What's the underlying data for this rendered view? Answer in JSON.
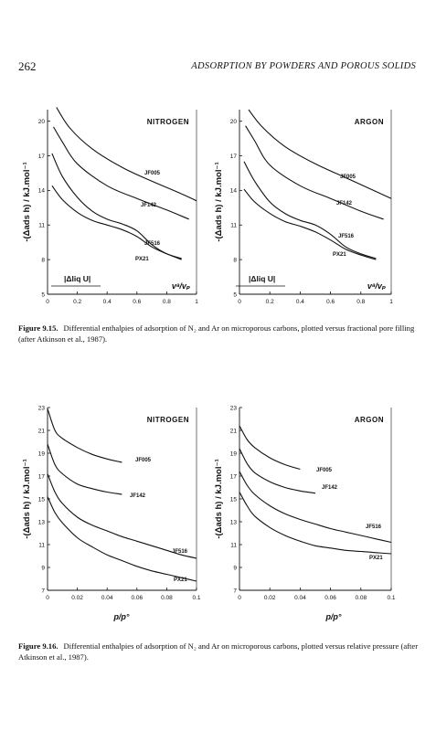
{
  "header": {
    "page_number": "262",
    "running_title": "ADSORPTION BY POWDERS AND POROUS SOLIDS"
  },
  "figure_15": {
    "caption_label": "Figure 9.15.",
    "caption_text": "Differential enthalpies of adsorption of N₂ and Ar on microporous carbons, plotted versus fractional pore filling (after Atkinson et al., 1987)."
  },
  "figure_16": {
    "caption_label": "Figure 9.16.",
    "caption_text": "Differential enthalpies of adsorption of N₂ and Ar on microporous carbons, plotted versus relative pressure (after Atkinson et al., 1987)."
  },
  "chart_data": [
    {
      "type": "line",
      "title": "NITROGEN",
      "ylabel": "-(Δads h) / kJ.mol⁻¹",
      "xlabel": "vᵃ/vₚ",
      "annotation": "|Δliq U|",
      "xlim": [
        0,
        1
      ],
      "ylim": [
        5,
        21
      ],
      "xticks": [
        "0",
        "0.2",
        "0.4",
        "0.6",
        "0.8",
        "1"
      ],
      "yticks": [
        "5",
        "8",
        "11",
        "14",
        "17",
        "20"
      ],
      "series": [
        {
          "name": "JF005",
          "x": [
            0.06,
            0.15,
            0.3,
            0.5,
            0.7,
            0.9,
            1.0
          ],
          "y": [
            21.2,
            19.4,
            17.6,
            16.0,
            14.8,
            13.7,
            13.1
          ]
        },
        {
          "name": "JF142",
          "x": [
            0.04,
            0.1,
            0.2,
            0.4,
            0.6,
            0.8,
            0.95
          ],
          "y": [
            19.5,
            18.2,
            16.3,
            14.4,
            13.3,
            12.3,
            11.5
          ]
        },
        {
          "name": "JF516",
          "x": [
            0.03,
            0.1,
            0.2,
            0.3,
            0.4,
            0.5,
            0.6,
            0.7,
            0.8,
            0.9
          ],
          "y": [
            17.2,
            15.2,
            13.4,
            12.2,
            11.5,
            11.1,
            10.5,
            9.3,
            8.5,
            8.1
          ]
        },
        {
          "name": "PX21",
          "x": [
            0.03,
            0.1,
            0.2,
            0.3,
            0.4,
            0.5,
            0.6,
            0.7,
            0.8,
            0.9
          ],
          "y": [
            14.4,
            13.2,
            12.1,
            11.4,
            11.0,
            10.6,
            10.0,
            9.1,
            8.5,
            8.0
          ]
        }
      ]
    },
    {
      "type": "line",
      "title": "ARGON",
      "ylabel": "-(Δads h) / kJ.mol⁻¹",
      "xlabel": "vᵃ/vₚ",
      "annotation": "|Δliq U|",
      "xlim": [
        0,
        1
      ],
      "ylim": [
        5,
        21
      ],
      "xticks": [
        "0",
        "0.2",
        "0.4",
        "0.6",
        "0.8",
        "1"
      ],
      "yticks": [
        "5",
        "8",
        "11",
        "14",
        "17",
        "20"
      ],
      "series": [
        {
          "name": "JF005",
          "x": [
            0.06,
            0.15,
            0.3,
            0.5,
            0.7,
            0.9,
            1.0
          ],
          "y": [
            21.0,
            19.5,
            17.8,
            16.3,
            15.1,
            13.9,
            13.3
          ]
        },
        {
          "name": "JF142",
          "x": [
            0.04,
            0.1,
            0.2,
            0.4,
            0.6,
            0.8,
            0.95
          ],
          "y": [
            19.6,
            18.3,
            16.2,
            14.4,
            13.3,
            12.2,
            11.5
          ]
        },
        {
          "name": "JF516",
          "x": [
            0.03,
            0.1,
            0.2,
            0.3,
            0.4,
            0.5,
            0.6,
            0.7,
            0.8,
            0.9
          ],
          "y": [
            16.5,
            14.8,
            13.0,
            12.0,
            11.4,
            11.0,
            10.2,
            9.1,
            8.5,
            8.1
          ]
        },
        {
          "name": "PX21",
          "x": [
            0.03,
            0.1,
            0.2,
            0.3,
            0.4,
            0.5,
            0.6,
            0.7,
            0.8,
            0.9
          ],
          "y": [
            14.1,
            13.0,
            12.0,
            11.3,
            10.9,
            10.4,
            9.7,
            8.9,
            8.4,
            8.0
          ]
        }
      ]
    },
    {
      "type": "line",
      "title": "NITROGEN",
      "ylabel": "-(Δads h) / kJ.mol⁻¹",
      "xlabel": "p/p°",
      "xlim": [
        0,
        0.1
      ],
      "ylim": [
        7,
        23
      ],
      "xticks": [
        "0",
        "0.02",
        "0.04",
        "0.06",
        "0.08",
        "0.1"
      ],
      "yticks": [
        "7",
        "9",
        "11",
        "13",
        "15",
        "17",
        "19",
        "21",
        "23"
      ],
      "series": [
        {
          "name": "JF005",
          "x": [
            0.0,
            0.005,
            0.01,
            0.02,
            0.03,
            0.04,
            0.05
          ],
          "y": [
            22.9,
            21.0,
            20.3,
            19.5,
            18.9,
            18.5,
            18.2
          ]
        },
        {
          "name": "JF142",
          "x": [
            0.0,
            0.005,
            0.01,
            0.02,
            0.03,
            0.04,
            0.05
          ],
          "y": [
            19.8,
            18.0,
            17.2,
            16.3,
            15.9,
            15.6,
            15.4
          ]
        },
        {
          "name": "JF516",
          "x": [
            0.0,
            0.005,
            0.01,
            0.02,
            0.03,
            0.04,
            0.05,
            0.06,
            0.07,
            0.08,
            0.09,
            0.1
          ],
          "y": [
            17.2,
            15.6,
            14.6,
            13.4,
            12.7,
            12.2,
            11.7,
            11.3,
            10.9,
            10.5,
            10.1,
            9.8
          ]
        },
        {
          "name": "PX21",
          "x": [
            0.0,
            0.005,
            0.01,
            0.02,
            0.03,
            0.04,
            0.05,
            0.06,
            0.07,
            0.08,
            0.09,
            0.1
          ],
          "y": [
            15.2,
            13.8,
            12.9,
            11.6,
            10.8,
            10.1,
            9.6,
            9.1,
            8.7,
            8.4,
            8.1,
            7.8
          ]
        }
      ]
    },
    {
      "type": "line",
      "title": "ARGON",
      "ylabel": "-(Δads h) / kJ.mol⁻¹",
      "xlabel": "p/p°",
      "xlim": [
        0,
        0.1
      ],
      "ylim": [
        7,
        23
      ],
      "xticks": [
        "0",
        "0.02",
        "0.04",
        "0.06",
        "0.08",
        "0.1"
      ],
      "yticks": [
        "7",
        "9",
        "11",
        "13",
        "15",
        "17",
        "19",
        "21",
        "23"
      ],
      "series": [
        {
          "name": "JF005",
          "x": [
            0.0,
            0.005,
            0.01,
            0.02,
            0.03,
            0.04
          ],
          "y": [
            21.4,
            20.2,
            19.5,
            18.6,
            18.0,
            17.6
          ]
        },
        {
          "name": "JF142",
          "x": [
            0.0,
            0.005,
            0.01,
            0.02,
            0.03,
            0.04,
            0.05
          ],
          "y": [
            19.4,
            18.1,
            17.3,
            16.5,
            16.0,
            15.7,
            15.5
          ]
        },
        {
          "name": "JF516",
          "x": [
            0.0,
            0.005,
            0.01,
            0.02,
            0.03,
            0.04,
            0.05,
            0.06,
            0.07,
            0.08,
            0.09,
            0.1
          ],
          "y": [
            17.4,
            16.2,
            15.4,
            14.4,
            13.7,
            13.2,
            12.8,
            12.4,
            12.1,
            11.8,
            11.5,
            11.2
          ]
        },
        {
          "name": "PX21",
          "x": [
            0.0,
            0.005,
            0.01,
            0.02,
            0.03,
            0.04,
            0.05,
            0.06,
            0.07,
            0.08,
            0.09,
            0.1
          ],
          "y": [
            15.6,
            14.4,
            13.5,
            12.5,
            11.8,
            11.3,
            10.9,
            10.7,
            10.5,
            10.4,
            10.3,
            10.2
          ]
        }
      ]
    }
  ]
}
